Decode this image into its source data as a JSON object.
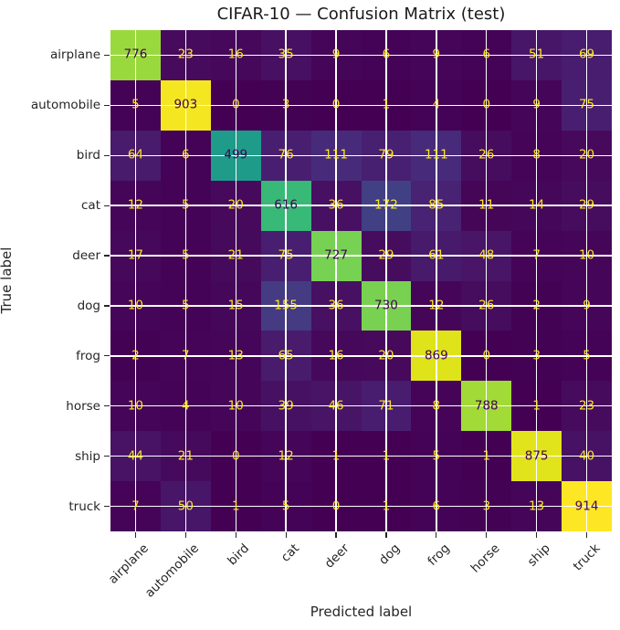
{
  "figure": {
    "title": "CIFAR-10 — Confusion Matrix (test)"
  },
  "chart_data": {
    "type": "heatmap",
    "title": "CIFAR-10 — Confusion Matrix (test)",
    "xlabel": "Predicted label",
    "ylabel": "True label",
    "x_categories": [
      "airplane",
      "automobile",
      "bird",
      "cat",
      "deer",
      "dog",
      "frog",
      "horse",
      "ship",
      "truck"
    ],
    "y_categories": [
      "airplane",
      "automobile",
      "bird",
      "cat",
      "deer",
      "dog",
      "frog",
      "horse",
      "ship",
      "truck"
    ],
    "matrix": [
      [
        776,
        23,
        16,
        35,
        9,
        6,
        9,
        6,
        51,
        69
      ],
      [
        5,
        903,
        0,
        3,
        0,
        1,
        4,
        0,
        9,
        75
      ],
      [
        64,
        6,
        499,
        76,
        111,
        79,
        111,
        26,
        8,
        20
      ],
      [
        12,
        5,
        20,
        616,
        36,
        172,
        85,
        11,
        14,
        29
      ],
      [
        17,
        5,
        21,
        75,
        727,
        29,
        61,
        48,
        7,
        10
      ],
      [
        10,
        5,
        15,
        155,
        36,
        730,
        12,
        26,
        2,
        9
      ],
      [
        2,
        7,
        13,
        65,
        16,
        20,
        869,
        0,
        3,
        5
      ],
      [
        10,
        4,
        10,
        39,
        46,
        71,
        8,
        788,
        1,
        23
      ],
      [
        44,
        21,
        0,
        12,
        1,
        1,
        5,
        1,
        875,
        40
      ],
      [
        7,
        50,
        1,
        5,
        0,
        1,
        6,
        3,
        13,
        914
      ]
    ],
    "vmin": 0,
    "vmax": 914,
    "colormap": "viridis",
    "palette": [
      "#440154",
      "#481567",
      "#482677",
      "#453781",
      "#404788",
      "#39568C",
      "#33638D",
      "#2D708E",
      "#287D8E",
      "#238A8D",
      "#1F968B",
      "#20A387",
      "#29AF7F",
      "#3CBB75",
      "#55C667",
      "#73D055",
      "#95D840",
      "#B8DE29",
      "#DCE319",
      "#FDE725"
    ],
    "grid": true,
    "grid_color": "#ffffff",
    "annotation_color_on_dark": "#FDE725",
    "annotation_color_on_bright": "#440154",
    "tick_color": "#262626",
    "legend": "none",
    "layout": "square cells, annotations centered, x tick labels rotated 45deg"
  }
}
